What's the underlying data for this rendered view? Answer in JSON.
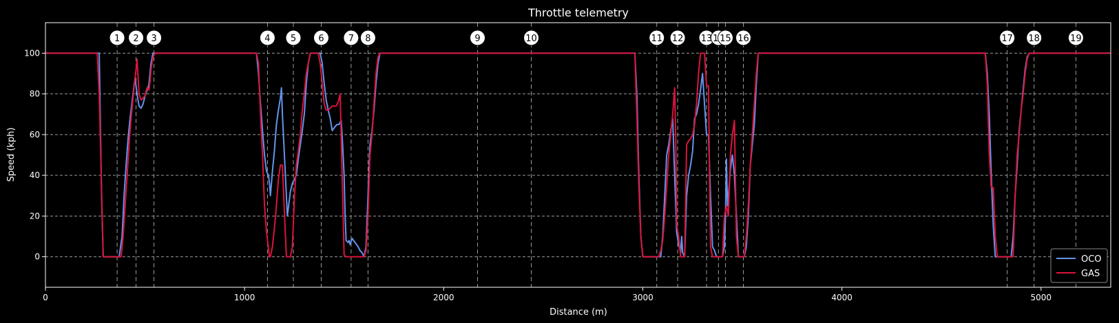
{
  "chart_data": {
    "type": "line",
    "title": "Throttle telemetry",
    "xlabel": "Distance (m)",
    "ylabel": "Speed (kph)",
    "xlim": [
      0,
      5350
    ],
    "ylim": [
      -15,
      115
    ],
    "xticks": [
      0,
      1000,
      2000,
      3000,
      4000,
      5000
    ],
    "yticks": [
      0,
      20,
      40,
      60,
      80,
      100
    ],
    "grid": true,
    "legend_position": "lower-right",
    "background": "#000000",
    "series": [
      {
        "name": "OCO",
        "color": "#6495ed",
        "points": [
          [
            0,
            100
          ],
          [
            270,
            100
          ],
          [
            275,
            70
          ],
          [
            282,
            30
          ],
          [
            290,
            0
          ],
          [
            300,
            0
          ],
          [
            340,
            0
          ],
          [
            370,
            0
          ],
          [
            385,
            10
          ],
          [
            395,
            30
          ],
          [
            405,
            45
          ],
          [
            415,
            58
          ],
          [
            425,
            68
          ],
          [
            440,
            80
          ],
          [
            450,
            88
          ],
          [
            460,
            80
          ],
          [
            470,
            74
          ],
          [
            480,
            73
          ],
          [
            490,
            75
          ],
          [
            500,
            79
          ],
          [
            515,
            83
          ],
          [
            520,
            85
          ],
          [
            525,
            90
          ],
          [
            530,
            95
          ],
          [
            540,
            100
          ],
          [
            560,
            100
          ],
          [
            1060,
            100
          ],
          [
            1070,
            90
          ],
          [
            1080,
            75
          ],
          [
            1090,
            62
          ],
          [
            1100,
            50
          ],
          [
            1110,
            42
          ],
          [
            1120,
            40
          ],
          [
            1125,
            36
          ],
          [
            1130,
            30
          ],
          [
            1140,
            42
          ],
          [
            1150,
            52
          ],
          [
            1160,
            65
          ],
          [
            1170,
            72
          ],
          [
            1180,
            78
          ],
          [
            1185,
            83
          ],
          [
            1190,
            70
          ],
          [
            1200,
            50
          ],
          [
            1215,
            20
          ],
          [
            1230,
            32
          ],
          [
            1240,
            36
          ],
          [
            1250,
            38
          ],
          [
            1260,
            40
          ],
          [
            1270,
            48
          ],
          [
            1280,
            55
          ],
          [
            1290,
            62
          ],
          [
            1300,
            70
          ],
          [
            1310,
            85
          ],
          [
            1320,
            95
          ],
          [
            1330,
            100
          ],
          [
            1380,
            100
          ],
          [
            1390,
            95
          ],
          [
            1400,
            85
          ],
          [
            1410,
            77
          ],
          [
            1420,
            72
          ],
          [
            1430,
            68
          ],
          [
            1440,
            62
          ],
          [
            1455,
            64
          ],
          [
            1465,
            65
          ],
          [
            1475,
            65
          ],
          [
            1485,
            67
          ],
          [
            1490,
            60
          ],
          [
            1495,
            50
          ],
          [
            1500,
            40
          ],
          [
            1505,
            20
          ],
          [
            1510,
            8
          ],
          [
            1520,
            7
          ],
          [
            1525,
            8
          ],
          [
            1530,
            6
          ],
          [
            1540,
            9
          ],
          [
            1555,
            7
          ],
          [
            1570,
            5
          ],
          [
            1580,
            3
          ],
          [
            1590,
            2
          ],
          [
            1600,
            0
          ],
          [
            1610,
            5
          ],
          [
            1620,
            30
          ],
          [
            1630,
            55
          ],
          [
            1640,
            62
          ],
          [
            1650,
            72
          ],
          [
            1660,
            85
          ],
          [
            1670,
            95
          ],
          [
            1680,
            100
          ],
          [
            2960,
            100
          ],
          [
            2970,
            80
          ],
          [
            2980,
            40
          ],
          [
            2990,
            10
          ],
          [
            3000,
            0
          ],
          [
            3020,
            0
          ],
          [
            3090,
            0
          ],
          [
            3100,
            10
          ],
          [
            3110,
            30
          ],
          [
            3120,
            50
          ],
          [
            3130,
            55
          ],
          [
            3140,
            62
          ],
          [
            3150,
            68
          ],
          [
            3160,
            40
          ],
          [
            3170,
            12
          ],
          [
            3180,
            6
          ],
          [
            3190,
            2
          ],
          [
            3195,
            10
          ],
          [
            3200,
            2
          ],
          [
            3210,
            0
          ],
          [
            3220,
            30
          ],
          [
            3230,
            40
          ],
          [
            3240,
            45
          ],
          [
            3250,
            52
          ],
          [
            3260,
            68
          ],
          [
            3270,
            70
          ],
          [
            3280,
            75
          ],
          [
            3290,
            82
          ],
          [
            3300,
            90
          ],
          [
            3310,
            75
          ],
          [
            3320,
            60
          ],
          [
            3330,
            60
          ],
          [
            3340,
            30
          ],
          [
            3350,
            5
          ],
          [
            3360,
            3
          ],
          [
            3370,
            0
          ],
          [
            3380,
            0
          ],
          [
            3400,
            0
          ],
          [
            3410,
            5
          ],
          [
            3415,
            20
          ],
          [
            3420,
            48
          ],
          [
            3425,
            25
          ],
          [
            3430,
            30
          ],
          [
            3440,
            43
          ],
          [
            3450,
            50
          ],
          [
            3460,
            40
          ],
          [
            3470,
            20
          ],
          [
            3480,
            0
          ],
          [
            3490,
            0
          ],
          [
            3510,
            0
          ],
          [
            3520,
            5
          ],
          [
            3530,
            20
          ],
          [
            3540,
            45
          ],
          [
            3550,
            55
          ],
          [
            3560,
            65
          ],
          [
            3570,
            85
          ],
          [
            3580,
            100
          ],
          [
            4720,
            100
          ],
          [
            4730,
            90
          ],
          [
            4740,
            70
          ],
          [
            4750,
            40
          ],
          [
            4760,
            15
          ],
          [
            4770,
            0
          ],
          [
            4800,
            0
          ],
          [
            4850,
            0
          ],
          [
            4860,
            10
          ],
          [
            4870,
            30
          ],
          [
            4880,
            45
          ],
          [
            4890,
            62
          ],
          [
            4900,
            72
          ],
          [
            4910,
            82
          ],
          [
            4920,
            92
          ],
          [
            4930,
            98
          ],
          [
            4940,
            100
          ],
          [
            5350,
            100
          ]
        ]
      },
      {
        "name": "GAS",
        "color": "#dc143c",
        "points": [
          [
            0,
            100
          ],
          [
            260,
            100
          ],
          [
            270,
            80
          ],
          [
            280,
            40
          ],
          [
            290,
            0
          ],
          [
            300,
            0
          ],
          [
            360,
            0
          ],
          [
            380,
            0
          ],
          [
            390,
            10
          ],
          [
            400,
            25
          ],
          [
            410,
            40
          ],
          [
            420,
            55
          ],
          [
            430,
            68
          ],
          [
            440,
            78
          ],
          [
            450,
            88
          ],
          [
            455,
            92
          ],
          [
            460,
            97
          ],
          [
            470,
            80
          ],
          [
            480,
            77
          ],
          [
            490,
            78
          ],
          [
            500,
            79
          ],
          [
            510,
            83
          ],
          [
            520,
            82
          ],
          [
            525,
            86
          ],
          [
            530,
            92
          ],
          [
            540,
            98
          ],
          [
            550,
            100
          ],
          [
            1060,
            100
          ],
          [
            1070,
            95
          ],
          [
            1080,
            70
          ],
          [
            1090,
            50
          ],
          [
            1100,
            25
          ],
          [
            1110,
            12
          ],
          [
            1120,
            4
          ],
          [
            1125,
            0
          ],
          [
            1130,
            0
          ],
          [
            1140,
            5
          ],
          [
            1150,
            14
          ],
          [
            1160,
            25
          ],
          [
            1170,
            38
          ],
          [
            1180,
            45
          ],
          [
            1190,
            45
          ],
          [
            1200,
            22
          ],
          [
            1210,
            0
          ],
          [
            1230,
            0
          ],
          [
            1240,
            5
          ],
          [
            1250,
            28
          ],
          [
            1260,
            45
          ],
          [
            1270,
            52
          ],
          [
            1280,
            60
          ],
          [
            1290,
            72
          ],
          [
            1300,
            80
          ],
          [
            1310,
            90
          ],
          [
            1320,
            95
          ],
          [
            1330,
            100
          ],
          [
            1360,
            100
          ],
          [
            1370,
            100
          ],
          [
            1380,
            95
          ],
          [
            1390,
            85
          ],
          [
            1400,
            75
          ],
          [
            1410,
            72
          ],
          [
            1420,
            72
          ],
          [
            1430,
            73
          ],
          [
            1440,
            74
          ],
          [
            1450,
            74
          ],
          [
            1460,
            74
          ],
          [
            1470,
            76
          ],
          [
            1480,
            80
          ],
          [
            1490,
            40
          ],
          [
            1500,
            1
          ],
          [
            1510,
            0
          ],
          [
            1580,
            0
          ],
          [
            1600,
            0
          ],
          [
            1610,
            3
          ],
          [
            1620,
            20
          ],
          [
            1630,
            50
          ],
          [
            1640,
            60
          ],
          [
            1650,
            75
          ],
          [
            1660,
            90
          ],
          [
            1670,
            98
          ],
          [
            1680,
            100
          ],
          [
            2960,
            100
          ],
          [
            2970,
            70
          ],
          [
            2980,
            35
          ],
          [
            2990,
            10
          ],
          [
            3000,
            0
          ],
          [
            3080,
            0
          ],
          [
            3090,
            3
          ],
          [
            3100,
            8
          ],
          [
            3110,
            20
          ],
          [
            3120,
            35
          ],
          [
            3130,
            50
          ],
          [
            3140,
            60
          ],
          [
            3150,
            70
          ],
          [
            3160,
            83
          ],
          [
            3165,
            60
          ],
          [
            3170,
            16
          ],
          [
            3180,
            10
          ],
          [
            3190,
            0
          ],
          [
            3210,
            0
          ],
          [
            3220,
            55
          ],
          [
            3230,
            57
          ],
          [
            3240,
            58
          ],
          [
            3250,
            60
          ],
          [
            3260,
            65
          ],
          [
            3270,
            75
          ],
          [
            3280,
            90
          ],
          [
            3290,
            100
          ],
          [
            3310,
            100
          ],
          [
            3320,
            84
          ],
          [
            3330,
            84
          ],
          [
            3335,
            40
          ],
          [
            3340,
            5
          ],
          [
            3350,
            0
          ],
          [
            3380,
            0
          ],
          [
            3400,
            0
          ],
          [
            3410,
            20
          ],
          [
            3420,
            25
          ],
          [
            3430,
            20
          ],
          [
            3440,
            50
          ],
          [
            3450,
            60
          ],
          [
            3460,
            67
          ],
          [
            3470,
            10
          ],
          [
            3480,
            0
          ],
          [
            3500,
            0
          ],
          [
            3510,
            0
          ],
          [
            3520,
            10
          ],
          [
            3530,
            25
          ],
          [
            3540,
            45
          ],
          [
            3550,
            60
          ],
          [
            3560,
            75
          ],
          [
            3570,
            90
          ],
          [
            3580,
            100
          ],
          [
            4720,
            100
          ],
          [
            4730,
            85
          ],
          [
            4740,
            50
          ],
          [
            4750,
            34
          ],
          [
            4760,
            34
          ],
          [
            4770,
            10
          ],
          [
            4780,
            0
          ],
          [
            4830,
            0
          ],
          [
            4860,
            0
          ],
          [
            4870,
            30
          ],
          [
            4880,
            50
          ],
          [
            4890,
            60
          ],
          [
            4900,
            72
          ],
          [
            4910,
            80
          ],
          [
            4920,
            90
          ],
          [
            4930,
            97
          ],
          [
            4940,
            100
          ],
          [
            5350,
            100
          ]
        ]
      }
    ],
    "corners": [
      {
        "label": "1",
        "x": 360
      },
      {
        "label": "2",
        "x": 455
      },
      {
        "label": "3",
        "x": 545
      },
      {
        "label": "4",
        "x": 1115
      },
      {
        "label": "5",
        "x": 1245
      },
      {
        "label": "6",
        "x": 1385
      },
      {
        "label": "7",
        "x": 1535
      },
      {
        "label": "8",
        "x": 1620
      },
      {
        "label": "9",
        "x": 2170
      },
      {
        "label": "10",
        "x": 2440
      },
      {
        "label": "11",
        "x": 3070
      },
      {
        "label": "12",
        "x": 3175
      },
      {
        "label": "13",
        "x": 3320
      },
      {
        "label": "14",
        "x": 3380
      },
      {
        "label": "15",
        "x": 3415
      },
      {
        "label": "16",
        "x": 3505
      },
      {
        "label": "17",
        "x": 4830
      },
      {
        "label": "18",
        "x": 4965
      },
      {
        "label": "19",
        "x": 5175
      }
    ]
  }
}
